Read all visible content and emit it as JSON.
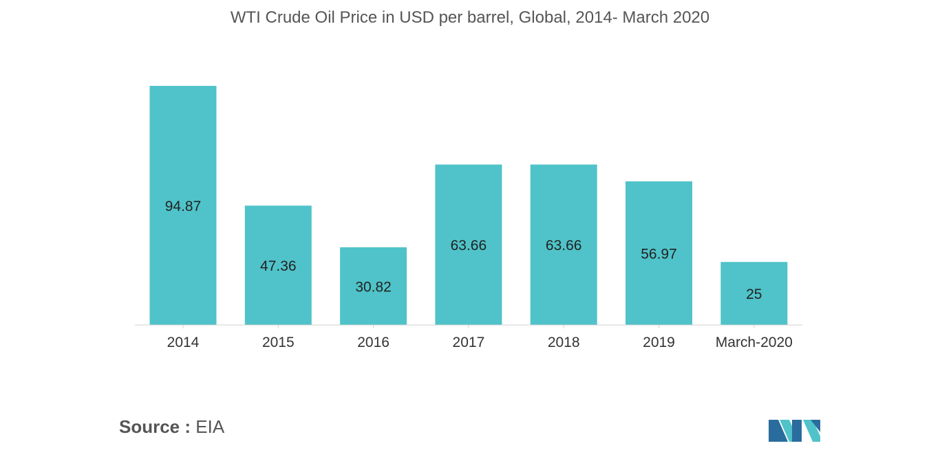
{
  "chart_data": {
    "type": "bar",
    "title": "WTI Crude Oil Price in USD per barrel, Global, 2014- March 2020",
    "categories": [
      "2014",
      "2015",
      "2016",
      "2017",
      "2018",
      "2019",
      "March-2020"
    ],
    "values": [
      94.87,
      47.36,
      30.82,
      63.66,
      63.66,
      56.97,
      25
    ],
    "data_labels": [
      "94.87",
      "47.36",
      "30.82",
      "63.66",
      "63.66",
      "56.97",
      "25"
    ],
    "xlabel": "",
    "ylabel": "",
    "ylim": [
      0,
      94.87
    ],
    "grid": false,
    "legend": "none",
    "bar_color": "#4fc3c9"
  },
  "source": {
    "key": "Source :",
    "value": "EIA"
  },
  "logo": {
    "icon": "mordor-intelligence-logo-icon",
    "colors": [
      "#2b6c9e",
      "#4fc3c9"
    ]
  }
}
